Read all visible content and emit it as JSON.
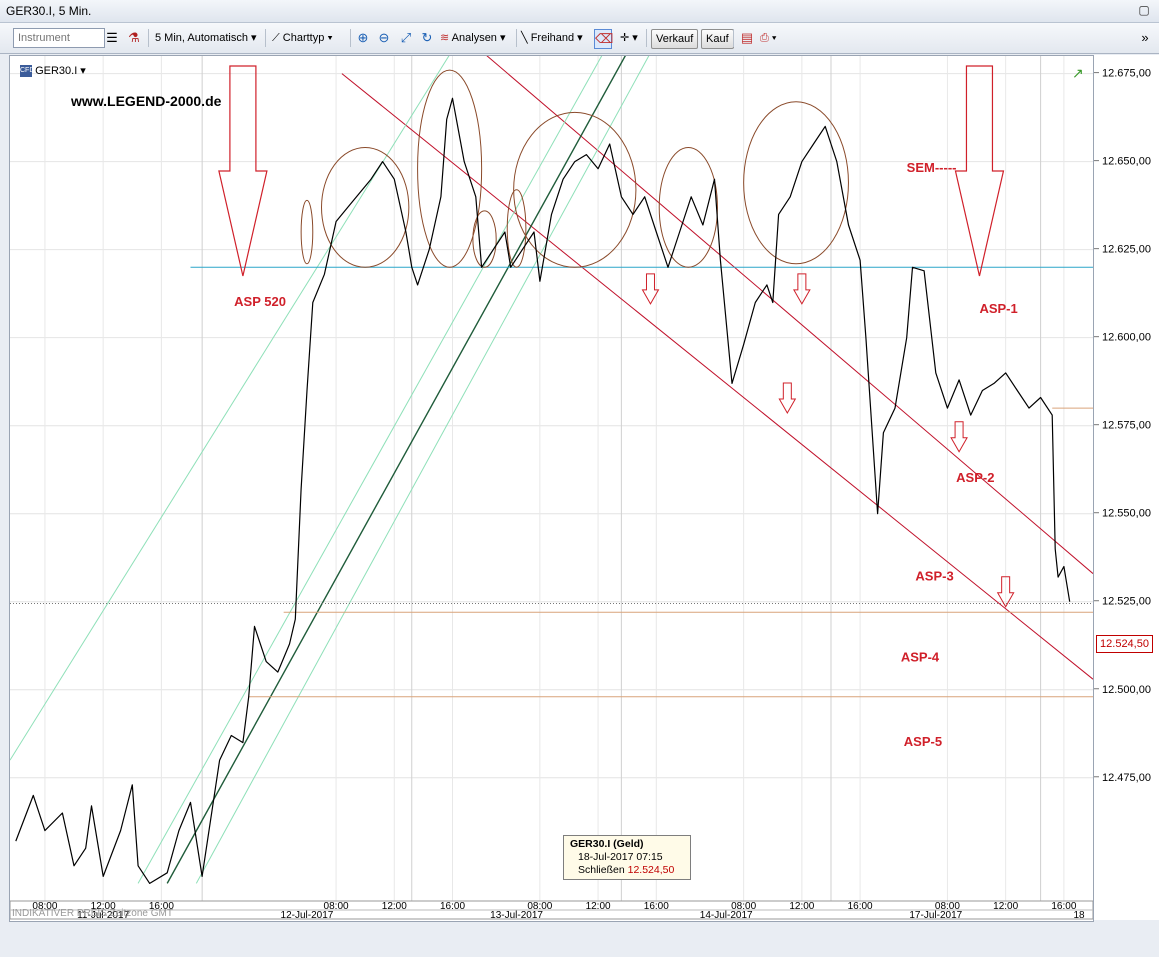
{
  "window": {
    "title": "GER30.I, 5 Min."
  },
  "toolbar": {
    "instrument_placeholder": "Instrument",
    "interval": "5 Min,  Automatisch",
    "charttype": "Charttyp",
    "analysen": "Analysen",
    "freihand": "Freihand",
    "verkauf": "Verkauf",
    "kauf": "Kauf"
  },
  "chart_header": {
    "symbol": "GER30.I",
    "website": "www.LEGEND-2000.de"
  },
  "footer": {
    "indicator": "INDIKATIVER PREIS",
    "zone": "Zeitzone GMT"
  },
  "tooltip": {
    "title": "GER30.I (Geld)",
    "datetime": "18-Jul-2017 07:15",
    "label": "Schließen",
    "value": "12.524,50"
  },
  "current_price": "12.524,50",
  "colors": {
    "price": "#000000",
    "support": "#2ba6c9",
    "resistance": "#d9a37a",
    "trend_down": "#c0102a",
    "trend_up": "#8ee0b8",
    "trend_up_main": "#1f5c3a",
    "annotation": "#d0202a"
  },
  "chart_data": {
    "type": "line",
    "y_ticks": [
      "12.675,00",
      "12.650,00",
      "12.625,00",
      "12.600,00",
      "12.575,00",
      "12.550,00",
      "12.525,00",
      "12.500,00",
      "12.475,00"
    ],
    "y_tick_values": [
      12675,
      12650,
      12625,
      12600,
      12575,
      12550,
      12525,
      12500,
      12475
    ],
    "ylim": [
      12440,
      12680
    ],
    "x_time_labels": [
      {
        "t": 0.5,
        "label": "08:00"
      },
      {
        "t": 1.5,
        "label": "12:00"
      },
      {
        "t": 2.5,
        "label": "16:00"
      },
      {
        "t": 5.5,
        "label": "08:00"
      },
      {
        "t": 6.5,
        "label": "12:00"
      },
      {
        "t": 7.5,
        "label": "16:00"
      },
      {
        "t": 9.0,
        "label": "08:00"
      },
      {
        "t": 10.0,
        "label": "12:00"
      },
      {
        "t": 11.0,
        "label": "16:00"
      },
      {
        "t": 12.5,
        "label": "08:00"
      },
      {
        "t": 13.5,
        "label": "12:00"
      },
      {
        "t": 14.5,
        "label": "16:00"
      },
      {
        "t": 16.0,
        "label": "08:00"
      },
      {
        "t": 17.0,
        "label": "12:00"
      },
      {
        "t": 18.0,
        "label": "16:00"
      }
    ],
    "x_date_labels": [
      {
        "t": 1.5,
        "label": "11-Jul-2017"
      },
      {
        "t": 5.0,
        "label": "12-Jul-2017"
      },
      {
        "t": 8.6,
        "label": "13-Jul-2017"
      },
      {
        "t": 12.2,
        "label": "14-Jul-2017"
      },
      {
        "t": 15.8,
        "label": "17-Jul-2017"
      },
      {
        "t": 19.0,
        "label": "18"
      }
    ],
    "x_day_separators": [
      3.2,
      6.8,
      10.4,
      14.0,
      17.6
    ],
    "xlim": [
      -0.1,
      18.5
    ],
    "series": [
      {
        "values": [
          [
            0,
            12457
          ],
          [
            0.3,
            12470
          ],
          [
            0.5,
            12460
          ],
          [
            0.8,
            12465
          ],
          [
            1.0,
            12450
          ],
          [
            1.2,
            12455
          ],
          [
            1.3,
            12467
          ],
          [
            1.5,
            12447
          ],
          [
            1.8,
            12460
          ],
          [
            2.0,
            12473
          ],
          [
            2.1,
            12450
          ],
          [
            2.3,
            12445
          ],
          [
            2.6,
            12448
          ],
          [
            2.8,
            12460
          ],
          [
            3.0,
            12468
          ],
          [
            3.2,
            12447
          ],
          [
            3.5,
            12480
          ],
          [
            3.7,
            12487
          ],
          [
            3.9,
            12485
          ],
          [
            4.0,
            12498
          ],
          [
            4.1,
            12518
          ],
          [
            4.3,
            12508
          ],
          [
            4.5,
            12505
          ],
          [
            4.7,
            12513
          ],
          [
            4.8,
            12520
          ],
          [
            4.9,
            12557
          ],
          [
            5.0,
            12585
          ],
          [
            5.1,
            12610
          ],
          [
            5.3,
            12618
          ],
          [
            5.5,
            12633
          ],
          [
            5.7,
            12637
          ],
          [
            5.9,
            12641
          ],
          [
            6.1,
            12645
          ],
          [
            6.3,
            12650
          ],
          [
            6.5,
            12645
          ],
          [
            6.7,
            12630
          ],
          [
            6.8,
            12620
          ],
          [
            6.9,
            12615
          ],
          [
            7.1,
            12625
          ],
          [
            7.3,
            12640
          ],
          [
            7.4,
            12662
          ],
          [
            7.5,
            12668
          ],
          [
            7.7,
            12650
          ],
          [
            7.9,
            12640
          ],
          [
            8.0,
            12620
          ],
          [
            8.2,
            12625
          ],
          [
            8.4,
            12630
          ],
          [
            8.5,
            12620
          ],
          [
            8.7,
            12625
          ],
          [
            8.9,
            12630
          ],
          [
            9.0,
            12616
          ],
          [
            9.2,
            12635
          ],
          [
            9.4,
            12645
          ],
          [
            9.6,
            12650
          ],
          [
            9.8,
            12652
          ],
          [
            10.0,
            12648
          ],
          [
            10.2,
            12655
          ],
          [
            10.4,
            12640
          ],
          [
            10.6,
            12635
          ],
          [
            10.8,
            12640
          ],
          [
            11.0,
            12630
          ],
          [
            11.2,
            12620
          ],
          [
            11.4,
            12630
          ],
          [
            11.6,
            12640
          ],
          [
            11.8,
            12632
          ],
          [
            12.0,
            12645
          ],
          [
            12.1,
            12622
          ],
          [
            12.3,
            12587
          ],
          [
            12.5,
            12598
          ],
          [
            12.7,
            12610
          ],
          [
            12.9,
            12615
          ],
          [
            13.0,
            12610
          ],
          [
            13.1,
            12635
          ],
          [
            13.3,
            12640
          ],
          [
            13.5,
            12650
          ],
          [
            13.7,
            12655
          ],
          [
            13.9,
            12660
          ],
          [
            14.1,
            12650
          ],
          [
            14.3,
            12632
          ],
          [
            14.5,
            12622
          ],
          [
            14.6,
            12600
          ],
          [
            14.8,
            12550
          ],
          [
            14.9,
            12573
          ],
          [
            15.1,
            12580
          ],
          [
            15.3,
            12600
          ],
          [
            15.4,
            12620
          ],
          [
            15.6,
            12619
          ],
          [
            15.8,
            12590
          ],
          [
            16.0,
            12580
          ],
          [
            16.2,
            12588
          ],
          [
            16.4,
            12578
          ],
          [
            16.6,
            12585
          ],
          [
            16.8,
            12587
          ],
          [
            17.0,
            12590
          ],
          [
            17.2,
            12585
          ],
          [
            17.4,
            12580
          ],
          [
            17.6,
            12583
          ],
          [
            17.8,
            12578
          ],
          [
            17.85,
            12540
          ],
          [
            17.9,
            12532
          ],
          [
            18.0,
            12535
          ],
          [
            18.1,
            12525
          ]
        ]
      }
    ],
    "horizontal_lines": [
      {
        "y": 12620,
        "x0": 3.0,
        "x1": 18.5,
        "kind": "support"
      },
      {
        "y": 12522,
        "x0": 4.6,
        "x1": 18.5,
        "kind": "resistance"
      },
      {
        "y": 12498,
        "x0": 4.0,
        "x1": 18.5,
        "kind": "resistance"
      },
      {
        "y": 12580,
        "x0": 17.8,
        "x1": 18.5,
        "kind": "resistance"
      },
      {
        "y": 12524.5,
        "x0": -0.1,
        "x1": 18.5,
        "kind": "current"
      }
    ],
    "trend_lines": [
      {
        "p": [
          [
            5.6,
            12675
          ],
          [
            18.5,
            12503
          ]
        ],
        "kind": "trend_down"
      },
      {
        "p": [
          [
            7.6,
            12687
          ],
          [
            18.5,
            12533
          ]
        ],
        "kind": "trend_down"
      },
      {
        "p": [
          [
            2.6,
            12445
          ],
          [
            10.8,
            12690
          ]
        ],
        "kind": "trend_up_main"
      },
      {
        "p": [
          [
            -0.1,
            12480
          ],
          [
            7.7,
            12687
          ]
        ],
        "kind": "trend_up"
      },
      {
        "p": [
          [
            2.1,
            12445
          ],
          [
            10.4,
            12690
          ]
        ],
        "kind": "trend_up"
      },
      {
        "p": [
          [
            3.1,
            12445
          ],
          [
            11.2,
            12690
          ]
        ],
        "kind": "trend_up"
      }
    ],
    "ellipses": [
      {
        "cx": 5.0,
        "cy": 12630,
        "rx": 0.1,
        "ry": 9
      },
      {
        "cx": 6.0,
        "cy": 12637,
        "rx": 0.75,
        "ry": 17
      },
      {
        "cx": 7.45,
        "cy": 12648,
        "rx": 0.55,
        "ry": 28
      },
      {
        "cx": 8.05,
        "cy": 12628,
        "rx": 0.2,
        "ry": 8
      },
      {
        "cx": 8.6,
        "cy": 12631,
        "rx": 0.16,
        "ry": 11
      },
      {
        "cx": 9.6,
        "cy": 12642,
        "rx": 1.05,
        "ry": 22
      },
      {
        "cx": 11.55,
        "cy": 12637,
        "rx": 0.5,
        "ry": 17
      },
      {
        "cx": 13.4,
        "cy": 12644,
        "rx": 0.9,
        "ry": 23
      }
    ],
    "annotations": [
      {
        "text": "ASP 520",
        "x": 3.75,
        "y": 12609
      },
      {
        "text": "ASP-1",
        "x": 16.55,
        "y": 12607
      },
      {
        "text": "ASP-2",
        "x": 16.15,
        "y": 12559
      },
      {
        "text": "ASP-3",
        "x": 15.45,
        "y": 12531
      },
      {
        "text": "ASP-4",
        "x": 15.2,
        "y": 12508
      },
      {
        "text": "ASP-5",
        "x": 15.25,
        "y": 12484
      },
      {
        "text": "SEM-----",
        "x": 15.3,
        "y": 12647
      }
    ],
    "big_arrows": [
      {
        "x": 3.9
      },
      {
        "x": 16.55
      }
    ],
    "small_arrows": [
      {
        "x": 10.9,
        "y": 12613
      },
      {
        "x": 13.5,
        "y": 12613
      },
      {
        "x": 13.25,
        "y": 12582
      },
      {
        "x": 16.2,
        "y": 12571
      },
      {
        "x": 17.0,
        "y": 12527
      }
    ]
  }
}
